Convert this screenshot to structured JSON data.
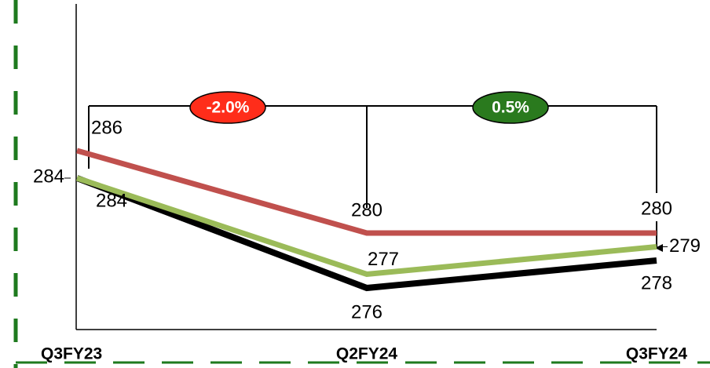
{
  "chart_data": {
    "type": "line",
    "categories": [
      "Q3FY23",
      "Q2FY24",
      "Q3FY24"
    ],
    "series": [
      {
        "color": "#c0504d",
        "values": [
          286,
          280,
          280
        ]
      },
      {
        "color": "#000000",
        "values": [
          284,
          276,
          278
        ]
      },
      {
        "color": "#9bbb59",
        "values": [
          284,
          277,
          279
        ]
      }
    ],
    "annotations": [
      {
        "text": "-2.0%",
        "color": "#ff2d1a"
      },
      {
        "text": "0.5%",
        "color": "#2a7a1e"
      }
    ]
  }
}
